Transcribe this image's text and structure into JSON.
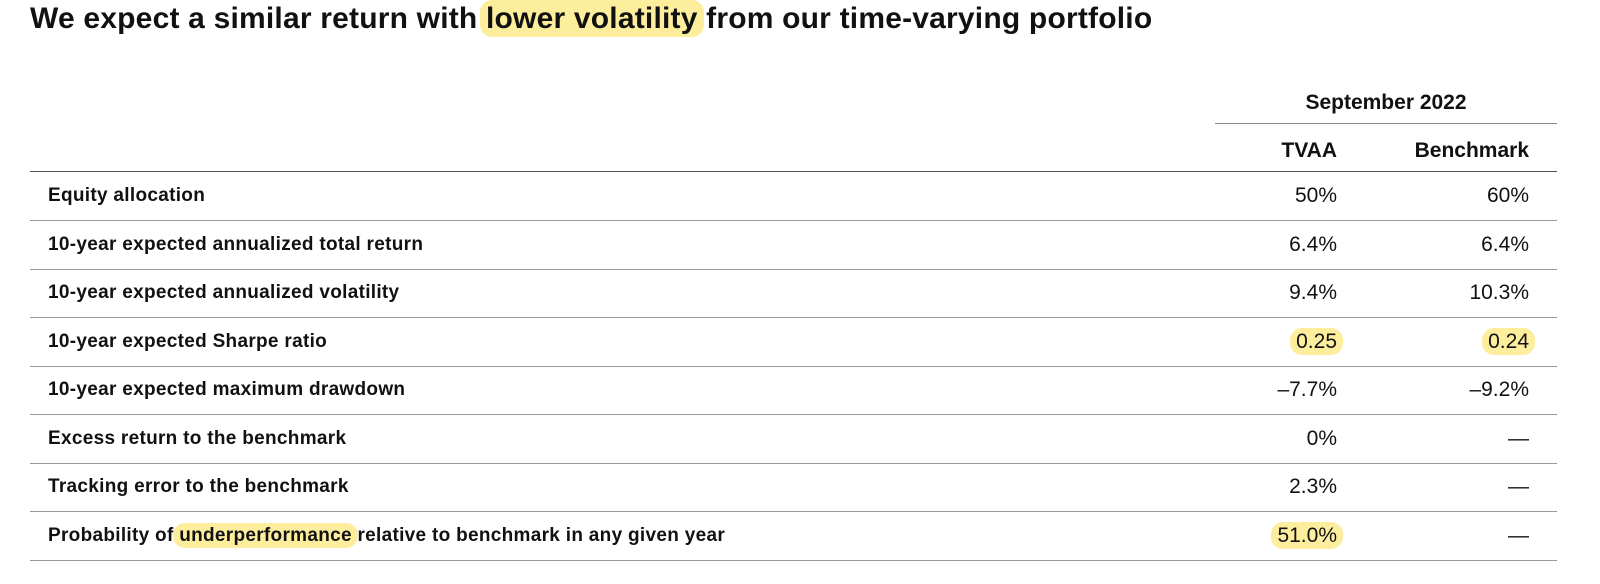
{
  "title": [
    "We expect a similar return with ",
    "lower volatility",
    " from our time-varying portfolio"
  ],
  "table": {
    "group_header": "September 2022",
    "columns": [
      "TVAA",
      "Benchmark"
    ],
    "rows": [
      {
        "label": "Equity allocation",
        "values": [
          "50%",
          "60%"
        ]
      },
      {
        "label": "10-year expected annualized total return",
        "values": [
          "6.4%",
          "6.4%"
        ]
      },
      {
        "label": "10-year expected annualized volatility",
        "values": [
          "9.4%",
          "10.3%"
        ]
      },
      {
        "label": "10-year expected Sharpe ratio",
        "values": [
          "0.25",
          "0.24"
        ]
      },
      {
        "label": "10-year expected maximum drawdown",
        "values": [
          "–7.7%",
          "–9.2%"
        ]
      },
      {
        "label": "Excess return to the benchmark",
        "values": [
          "0%",
          "—"
        ]
      },
      {
        "label": "Tracking error to the benchmark",
        "values": [
          "2.3%",
          "—"
        ]
      },
      {
        "label": [
          "Probability of ",
          "underperformance",
          " relative to benchmark in any given year"
        ],
        "values": [
          "51.0%",
          "—"
        ]
      }
    ]
  }
}
